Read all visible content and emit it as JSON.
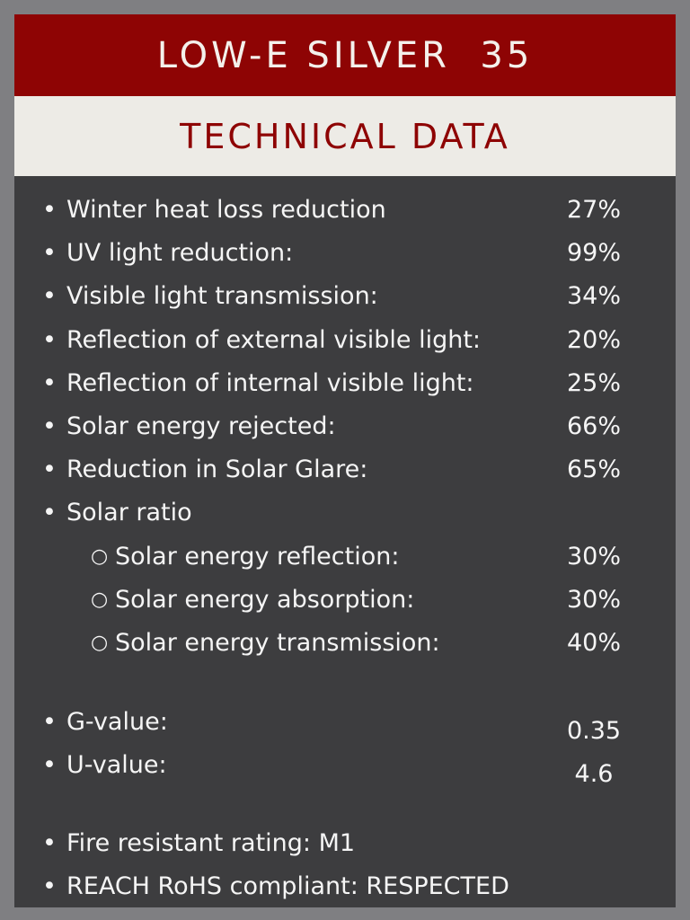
{
  "header": {
    "title": "LOW-E SILVER  35",
    "subtitle": "TECHNICAL DATA"
  },
  "bullet_glyph": "•",
  "sub_bullet_glyph": "○",
  "items": [
    {
      "label": "Winter heat loss reduction",
      "value": "27%"
    },
    {
      "label": "UV light reduction:",
      "value": "99%"
    },
    {
      "label": "Visible light transmission:",
      "value": "34%"
    },
    {
      "label": "Reflection of external visible light:",
      "value": "20%"
    },
    {
      "label": "Reflection of internal visible light:",
      "value": "25%"
    },
    {
      "label": "Solar energy rejected:",
      "value": "66%"
    },
    {
      "label": "Reduction in Solar Glare:",
      "value": "65%"
    },
    {
      "label": "Solar ratio",
      "value": ""
    }
  ],
  "solar_ratio_items": [
    {
      "label": "Solar energy reflection:",
      "value": "30%"
    },
    {
      "label": "Solar energy absorption:",
      "value": "30%"
    },
    {
      "label": "Solar energy transmission:",
      "value": "40%"
    }
  ],
  "values_items": [
    {
      "label": "G-value:",
      "value": "0.35"
    },
    {
      "label": "U-value:",
      "value": "4.6"
    }
  ],
  "compliance_items": [
    {
      "label": "Fire resistant rating: M1"
    },
    {
      "label": "REACH RoHS compliant: RESPECTED"
    }
  ],
  "colors": {
    "background": "#7f7f82",
    "panel": "#3d3d3f",
    "title_bar": "#8e0404",
    "subtitle_bar": "#edebe6",
    "text": "#f5f5f5"
  }
}
